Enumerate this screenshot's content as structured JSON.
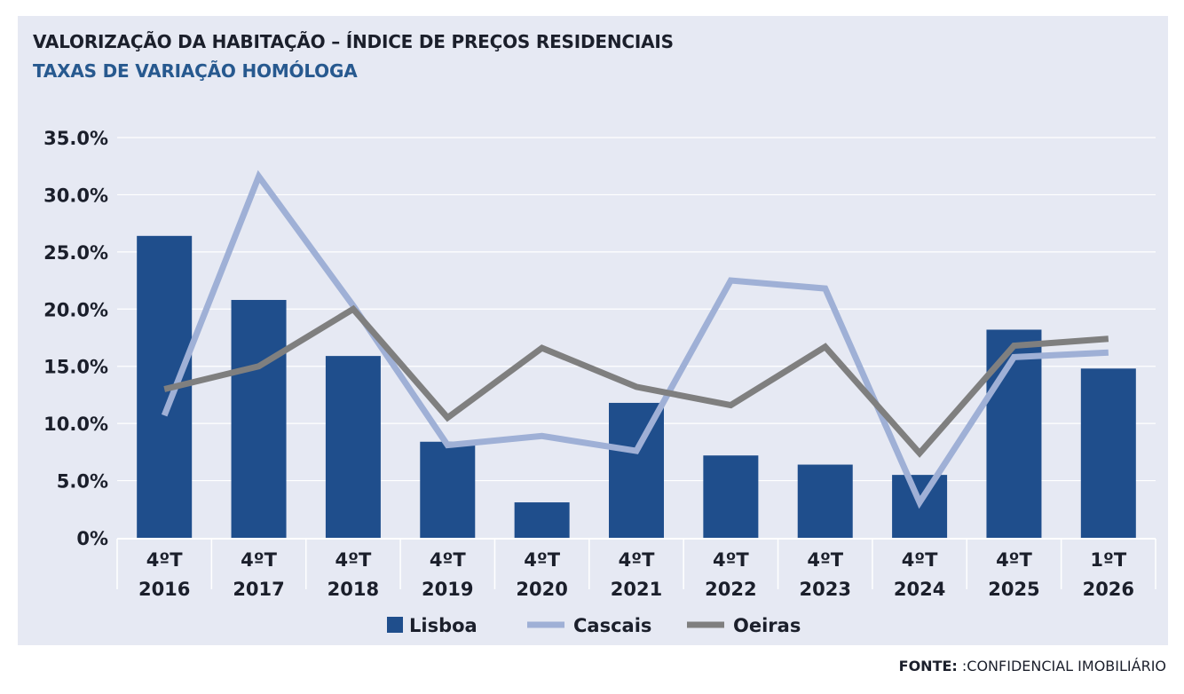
{
  "header": {
    "title": "VALORIZAÇÃO DA HABITAÇÃO – ÍNDICE DE PREÇOS RESIDENCIAIS",
    "subtitle": "TAXAS DE VARIAÇÃO HOMÓLOGA"
  },
  "source": {
    "label": "FONTE:",
    "text": " :CONFIDENCIAL IMOBILIÁRIO"
  },
  "colors": {
    "lisboa": "#1f4e8c",
    "cascais": "#9fb0d6",
    "oeiras": "#7f7f7f",
    "panel": "#e6e9f3",
    "text": "#1b1f2b",
    "accent": "#27598f"
  },
  "chart_data": {
    "type": "bar",
    "x_top_labels": [
      "4ºT",
      "4ºT",
      "4ºT",
      "4ºT",
      "4ºT",
      "4ºT",
      "4ºT",
      "4ºT",
      "4ºT",
      "4ºT",
      "1ºT"
    ],
    "x_bottom_labels": [
      "2016",
      "2017",
      "2018",
      "2019",
      "2020",
      "2021",
      "2022",
      "2023",
      "2024",
      "2025",
      "2026"
    ],
    "y_ticks": [
      "0%",
      "5.0%",
      "10.0%",
      "15.0%",
      "20.0%",
      "25.0%",
      "30.0%",
      "35.0%"
    ],
    "ylim": [
      0,
      35
    ],
    "grid": true,
    "legend_position": "bottom",
    "series": [
      {
        "name": "Lisboa",
        "type": "bar",
        "color": "#1f4e8c",
        "values": [
          26.4,
          20.8,
          15.9,
          8.4,
          3.1,
          11.8,
          7.2,
          6.4,
          5.5,
          18.2,
          14.8
        ]
      },
      {
        "name": "Cascais",
        "type": "line",
        "color": "#9fb0d6",
        "values": [
          10.7,
          31.6,
          20.3,
          8.1,
          8.9,
          7.6,
          22.5,
          21.8,
          3.1,
          15.8,
          16.2
        ]
      },
      {
        "name": "Oeiras",
        "type": "line",
        "color": "#7f7f7f",
        "values": [
          13.0,
          15.0,
          20.0,
          10.5,
          16.6,
          13.2,
          11.6,
          16.7,
          7.4,
          16.8,
          17.4
        ]
      }
    ]
  }
}
